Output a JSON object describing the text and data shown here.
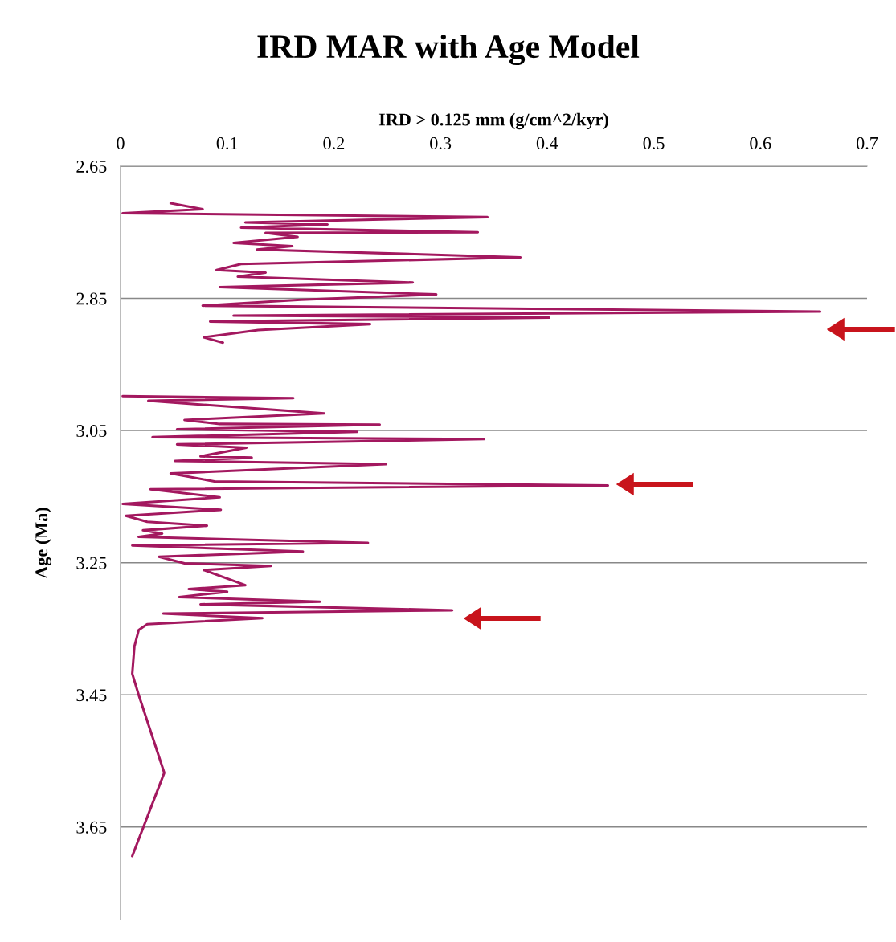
{
  "chart_data": {
    "type": "line",
    "title": "IRD MAR with Age Model",
    "xlabel": "IRD > 0.125 mm (g/cm^2/kyr)",
    "ylabel": "Age (Ma)",
    "xlim": [
      0,
      0.7
    ],
    "xticks": [
      0,
      0.1,
      0.2,
      0.3,
      0.4,
      0.5,
      0.6,
      0.7
    ],
    "ylim": [
      3.79,
      2.65
    ],
    "yticks": [
      2.65,
      2.85,
      3.05,
      3.25,
      3.45,
      3.65
    ],
    "grid": "y",
    "marker": "none",
    "line_style": "solid",
    "series": [
      {
        "color": "#a3185f",
        "x": [
          0.047,
          0.077,
          0.002,
          0.344,
          0.117,
          0.194,
          0.113,
          0.335,
          0.136,
          0.166,
          0.106,
          0.161,
          0.128,
          0.375,
          0.113,
          0.09,
          0.136,
          0.11,
          0.274,
          0.093,
          0.296,
          0.169,
          0.077,
          0.656,
          0.106,
          0.402,
          0.084,
          0.234,
          0.129,
          0.078,
          0.096,
          null,
          0.002,
          0.162,
          0.026,
          0.191,
          0.06,
          0.093,
          0.243,
          0.053,
          0.222,
          0.03,
          0.341,
          0.053,
          0.118,
          0.075,
          0.123,
          0.051,
          0.249,
          0.047,
          0.088,
          0.457,
          0.028,
          0.093,
          0.002,
          0.094,
          0.005,
          0.025,
          0.081,
          0.021,
          0.039,
          0.017,
          0.232,
          0.011,
          0.171,
          0.036,
          0.06,
          0.141,
          0.078,
          0.117,
          0.064,
          0.1,
          0.055,
          0.187,
          0.075,
          0.311,
          0.04,
          0.133,
          0.025,
          0.017,
          0.013,
          0.011,
          0.017,
          0.041,
          0.011
        ],
        "values": [
          2.706,
          2.715,
          2.721,
          2.727,
          2.735,
          2.738,
          2.743,
          2.75,
          2.751,
          2.757,
          2.766,
          2.771,
          2.776,
          2.788,
          2.798,
          2.807,
          2.811,
          2.817,
          2.826,
          2.833,
          2.844,
          2.852,
          2.861,
          2.87,
          2.876,
          2.879,
          2.885,
          2.889,
          2.898,
          2.909,
          2.917,
          null,
          2.998,
          3.001,
          3.005,
          3.024,
          3.034,
          3.04,
          3.041,
          3.048,
          3.052,
          3.06,
          3.063,
          3.071,
          3.076,
          3.089,
          3.091,
          3.096,
          3.101,
          3.115,
          3.127,
          3.133,
          3.139,
          3.151,
          3.161,
          3.17,
          3.179,
          3.188,
          3.194,
          3.201,
          3.206,
          3.211,
          3.22,
          3.224,
          3.233,
          3.241,
          3.251,
          3.255,
          3.261,
          3.284,
          3.29,
          3.294,
          3.302,
          3.309,
          3.313,
          3.322,
          3.327,
          3.334,
          3.343,
          3.352,
          3.377,
          3.418,
          3.45,
          3.568,
          3.694
        ]
      }
    ]
  }
}
